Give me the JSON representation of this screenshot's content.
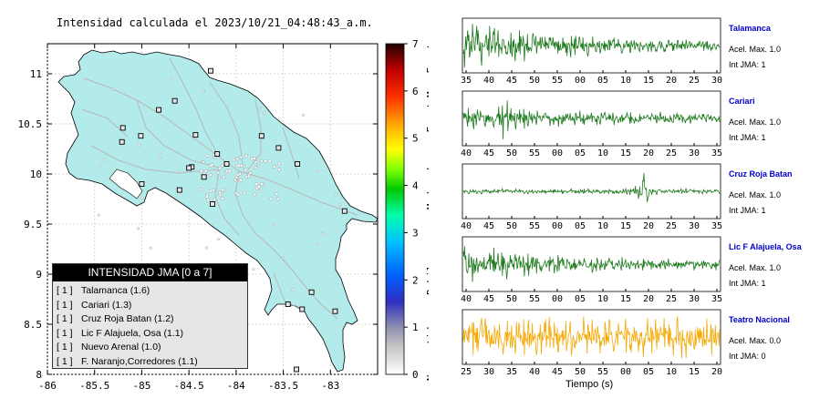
{
  "title": "Intensidad calculada el 2023/10/21_04:48:43_a.m.",
  "chart_data": [
    {
      "type": "map",
      "xlim": [
        -86,
        -82.5
      ],
      "ylim": [
        8,
        11.3
      ],
      "x_ticks": [
        "-86",
        "-85.5",
        "-85",
        "-84.5",
        "-84",
        "-83.5",
        "-83"
      ],
      "y_ticks": [
        "8",
        "8.5",
        "9",
        "9.5",
        "10",
        "10.5",
        "11"
      ],
      "station_markers": [
        {
          "lon": -84.27,
          "lat": 11.03
        },
        {
          "lon": -84.65,
          "lat": 10.73
        },
        {
          "lon": -84.82,
          "lat": 10.64
        },
        {
          "lon": -85.2,
          "lat": 10.46
        },
        {
          "lon": -85.01,
          "lat": 10.38
        },
        {
          "lon": -85.21,
          "lat": 10.32
        },
        {
          "lon": -84.43,
          "lat": 10.39
        },
        {
          "lon": -84.2,
          "lat": 10.2
        },
        {
          "lon": -84.1,
          "lat": 10.1
        },
        {
          "lon": -83.73,
          "lat": 10.38
        },
        {
          "lon": -83.55,
          "lat": 10.26
        },
        {
          "lon": -83.35,
          "lat": 10.1
        },
        {
          "lon": -84.47,
          "lat": 10.07
        },
        {
          "lon": -84.5,
          "lat": 10.06
        },
        {
          "lon": -84.34,
          "lat": 9.97
        },
        {
          "lon": -84.6,
          "lat": 9.84
        },
        {
          "lon": -85.0,
          "lat": 9.9
        },
        {
          "lon": -84.25,
          "lat": 9.7
        },
        {
          "lon": -82.85,
          "lat": 9.63
        },
        {
          "lon": -83.2,
          "lat": 8.82
        },
        {
          "lon": -83.45,
          "lat": 8.7
        },
        {
          "lon": -83.3,
          "lat": 8.65
        },
        {
          "lon": -82.95,
          "lat": 8.63
        },
        {
          "lon": -83.36,
          "lat": 8.05
        }
      ]
    },
    {
      "type": "colorbar",
      "ticks": [
        "0",
        "1",
        "2",
        "3",
        "4",
        "5",
        "6",
        "7"
      ],
      "band_labels": [
        "No sentido",
        "Debil",
        "Moderado",
        "Fuerte",
        "Muy Fuerte"
      ],
      "colors": [
        "#ffffff",
        "#9f9f9f",
        "#4040a0",
        "#0000ff",
        "#00a0ff",
        "#00ffb0",
        "#00c800",
        "#a0ff00",
        "#ffff00",
        "#ffa000",
        "#ff2000",
        "#b00000",
        "#3a0000"
      ]
    },
    {
      "type": "line",
      "name": "Talamanca",
      "x_ticks": [
        "35",
        "40",
        "45",
        "50",
        "55",
        "00",
        "05",
        "10",
        "15",
        "20",
        "25",
        "30"
      ],
      "color": "#1e7a1e"
    },
    {
      "type": "line",
      "name": "Cariari",
      "x_ticks": [
        "40",
        "45",
        "50",
        "55",
        "00",
        "05",
        "10",
        "15",
        "20",
        "25",
        "30",
        "35"
      ],
      "color": "#1e7a1e"
    },
    {
      "type": "line",
      "name": "Cruz Roja Batan",
      "x_ticks": [
        "40",
        "45",
        "50",
        "55",
        "00",
        "05",
        "10",
        "15",
        "20",
        "25",
        "30",
        "35"
      ],
      "color": "#1e7a1e"
    },
    {
      "type": "line",
      "name": "Lic F Alajuela, Osa",
      "x_ticks": [
        "40",
        "45",
        "50",
        "55",
        "00",
        "05",
        "10",
        "15",
        "20",
        "25",
        "30",
        "35"
      ],
      "color": "#1e7a1e"
    },
    {
      "type": "line",
      "name": "Teatro Nacional",
      "x_ticks": [
        "25",
        "30",
        "35",
        "40",
        "45",
        "50",
        "55",
        "00",
        "05",
        "10",
        "15",
        "20"
      ],
      "color": "#f5a800"
    }
  ],
  "legend": {
    "title": "INTENSIDAD JMA [0 a 7]",
    "rows": [
      {
        "level": "[ 1 ]",
        "name": "Talamanca (1.6)"
      },
      {
        "level": "[ 1 ]",
        "name": "Cariari (1.3)"
      },
      {
        "level": "[ 1 ]",
        "name": "Cruz Roja Batan (1.2)"
      },
      {
        "level": "[ 1 ]",
        "name": "Lic F Alajuela, Osa (1.1)"
      },
      {
        "level": "[ 1 ]",
        "name": "Nuevo Arenal (1.0)"
      },
      {
        "level": "[ 1 ]",
        "name": "F. Naranjo,Corredores (1.1)"
      }
    ]
  },
  "stations": [
    {
      "name": "Talamanca",
      "acel": "Acel. Max. 1.0",
      "int": "Int JMA: 1"
    },
    {
      "name": "Cariari",
      "acel": "Acel. Max. 1.0",
      "int": "Int JMA: 1"
    },
    {
      "name": "Cruz Roja Batan",
      "acel": "Acel. Max. 1.0",
      "int": "Int JMA: 1"
    },
    {
      "name": "Lic F Alajuela, Osa",
      "acel": "Acel. Max. 1.0",
      "int": "Int JMA: 1"
    },
    {
      "name": "Teatro Nacional",
      "acel": "Acel. Max. 0.0",
      "int": "Int JMA: 0"
    }
  ],
  "xlabel": "Tiempo (s)"
}
